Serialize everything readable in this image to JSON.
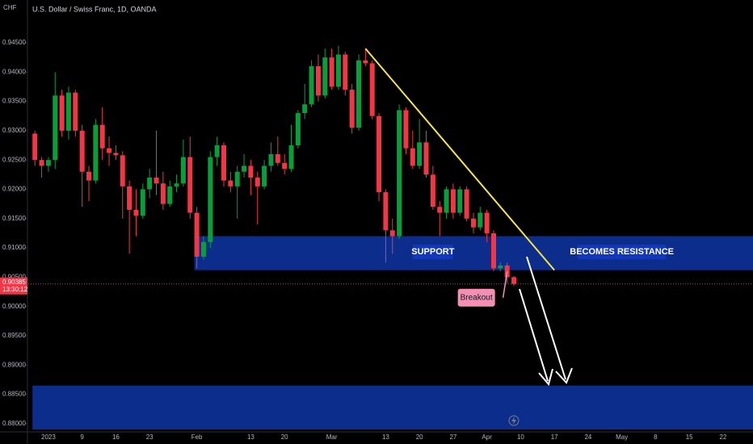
{
  "chart_data": {
    "type": "candlestick",
    "title": "U.S. Dollar / Swiss Franc, 1D, OANDA",
    "currency": "CHF",
    "categories": [
      null,
      null,
      "2023",
      null,
      null,
      null,
      null,
      "9",
      null,
      null,
      null,
      null,
      "16",
      null,
      null,
      null,
      null,
      "23",
      null,
      null,
      null,
      null,
      null,
      null,
      "Feb",
      null,
      null,
      null,
      null,
      null,
      null,
      null,
      "13",
      null,
      null,
      null,
      null,
      "20",
      null,
      null,
      null,
      null,
      null,
      null,
      "Mar",
      null,
      null,
      null,
      null,
      null,
      null,
      null,
      "13",
      null,
      null,
      null,
      null,
      "20",
      null,
      null,
      null,
      null,
      "27",
      null,
      null,
      null,
      null,
      "Apr",
      null,
      null,
      null,
      null,
      "10",
      null,
      null,
      null,
      null,
      "17",
      null,
      null,
      null,
      null,
      "24",
      null,
      null,
      null,
      null,
      "May",
      null,
      null,
      null,
      null,
      "8",
      null,
      null,
      null,
      null,
      "15",
      null,
      null,
      null,
      null,
      "22",
      null,
      null,
      null,
      null
    ],
    "open": [
      0.9295,
      0.925,
      0.924,
      0.925,
      0.936,
      0.93,
      0.9365,
      0.93,
      0.923,
      0.9215,
      0.931,
      0.927,
      0.9262,
      0.9258,
      0.9205,
      0.9165,
      0.9155,
      0.92,
      0.922,
      0.921,
      0.9175,
      0.9205,
      0.921,
      0.9255,
      0.916,
      0.9085,
      0.911,
      0.9255,
      0.9275,
      0.9215,
      0.9205,
      0.923,
      0.924,
      0.922,
      0.9205,
      0.924,
      0.926,
      0.9245,
      0.9235,
      0.9275,
      0.933,
      0.9345,
      0.941,
      0.936,
      0.9425,
      0.9375,
      0.943,
      0.937,
      0.9305,
      0.942,
      0.9415,
      0.9325,
      0.9195,
      0.913,
      0.912,
      0.9335,
      0.927,
      0.924,
      0.928,
      0.9225,
      0.917,
      0.916,
      0.92,
      0.916,
      0.92,
      0.915,
      0.9135,
      0.916,
      0.9125,
      0.9065,
      0.907,
      0.905,
      null,
      null,
      null,
      null,
      null,
      null,
      null,
      null,
      null,
      null,
      null,
      null,
      null,
      null,
      null,
      null,
      null,
      null,
      null,
      null,
      null,
      null,
      null,
      null,
      null,
      null,
      null,
      null,
      null,
      null,
      null,
      null,
      null,
      null,
      null
    ],
    "high": [
      0.93,
      0.9255,
      0.9255,
      0.94,
      0.937,
      0.9375,
      0.937,
      0.931,
      0.924,
      0.932,
      0.934,
      0.929,
      0.9275,
      0.9265,
      0.9215,
      0.92,
      0.921,
      0.9235,
      0.93,
      0.923,
      0.9215,
      0.9225,
      0.9285,
      0.929,
      0.917,
      0.912,
      0.9265,
      0.929,
      0.928,
      0.923,
      0.924,
      0.926,
      0.925,
      0.923,
      0.925,
      0.928,
      0.929,
      0.926,
      0.931,
      0.9335,
      0.938,
      0.942,
      0.943,
      0.944,
      0.944,
      0.9445,
      0.9435,
      0.938,
      0.943,
      0.944,
      0.942,
      0.933,
      0.92,
      0.915,
      0.9345,
      0.934,
      0.93,
      0.932,
      0.93,
      0.924,
      0.918,
      0.9205,
      0.921,
      0.9205,
      0.9205,
      0.916,
      0.917,
      0.9165,
      0.913,
      0.9075,
      0.9075,
      0.9052,
      null,
      null,
      null,
      null,
      null,
      null,
      null,
      null,
      null,
      null,
      null,
      null,
      null,
      null,
      null,
      null,
      null,
      null,
      null,
      null,
      null,
      null,
      null,
      null,
      null,
      null,
      null,
      null,
      null,
      null,
      null,
      null,
      null,
      null,
      null
    ],
    "low": [
      0.924,
      0.922,
      0.923,
      0.9235,
      0.929,
      0.9285,
      0.929,
      0.917,
      0.918,
      0.921,
      0.925,
      0.924,
      0.925,
      0.915,
      0.909,
      0.912,
      0.915,
      0.9185,
      0.919,
      0.9165,
      0.917,
      0.9195,
      0.9205,
      0.915,
      0.9065,
      0.908,
      0.91,
      0.924,
      0.9205,
      0.9195,
      0.915,
      0.922,
      0.919,
      0.914,
      0.92,
      0.923,
      0.924,
      0.9225,
      0.923,
      0.927,
      0.932,
      0.934,
      0.935,
      0.9355,
      0.937,
      0.937,
      0.936,
      0.9295,
      0.93,
      0.941,
      0.932,
      0.918,
      0.9075,
      0.909,
      0.9115,
      0.926,
      0.9235,
      0.9235,
      0.922,
      0.9165,
      0.912,
      0.915,
      0.915,
      0.9155,
      0.9145,
      0.9125,
      0.913,
      0.911,
      0.906,
      0.906,
      0.904,
      0.9035,
      null,
      null,
      null,
      null,
      null,
      null,
      null,
      null,
      null,
      null,
      null,
      null,
      null,
      null,
      null,
      null,
      null,
      null,
      null,
      null,
      null,
      null,
      null,
      null,
      null,
      null,
      null,
      null,
      null,
      null,
      null,
      null,
      null,
      null,
      null
    ],
    "close": [
      0.925,
      0.924,
      0.925,
      0.936,
      0.93,
      0.9365,
      0.93,
      0.923,
      0.9215,
      0.931,
      0.927,
      0.9262,
      0.9258,
      0.9205,
      0.9165,
      0.9155,
      0.92,
      0.922,
      0.921,
      0.9175,
      0.9205,
      0.921,
      0.9255,
      0.916,
      0.9085,
      0.911,
      0.9255,
      0.9275,
      0.9215,
      0.9205,
      0.923,
      0.924,
      0.922,
      0.9205,
      0.924,
      0.926,
      0.9245,
      0.9235,
      0.9275,
      0.933,
      0.9345,
      0.941,
      0.936,
      0.9425,
      0.9375,
      0.943,
      0.937,
      0.9305,
      0.942,
      0.9415,
      0.9325,
      0.9195,
      0.913,
      0.912,
      0.9335,
      0.927,
      0.924,
      0.928,
      0.9225,
      0.917,
      0.916,
      0.92,
      0.916,
      0.92,
      0.915,
      0.9135,
      0.916,
      0.9125,
      0.9065,
      0.907,
      0.905,
      0.90385,
      null,
      null,
      null,
      null,
      null,
      null,
      null,
      null,
      null,
      null,
      null,
      null,
      null,
      null,
      null,
      null,
      null,
      null,
      null,
      null,
      null,
      null,
      null,
      null,
      null,
      null,
      null,
      null,
      null,
      null,
      null,
      null,
      null,
      null,
      null
    ],
    "up_color": "#089e3a",
    "down_color": "#f23645",
    "ylim": [
      0.8786,
      0.9523
    ],
    "yticks": [
      {
        "value": 0.945,
        "label": "0.94500"
      },
      {
        "value": 0.94,
        "label": "0.94000"
      },
      {
        "value": 0.935,
        "label": "0.93500"
      },
      {
        "value": 0.93,
        "label": "0.93000"
      },
      {
        "value": 0.925,
        "label": "0.92500"
      },
      {
        "value": 0.92,
        "label": "0.92000"
      },
      {
        "value": 0.915,
        "label": "0.91500"
      },
      {
        "value": 0.91,
        "label": "0.91000"
      },
      {
        "value": 0.905,
        "label": "0.90500"
      },
      {
        "value": 0.9,
        "label": "0.90000"
      },
      {
        "value": 0.895,
        "label": "0.89500"
      },
      {
        "value": 0.89,
        "label": "0.89000"
      },
      {
        "value": 0.885,
        "label": "0.88500"
      },
      {
        "value": 0.88,
        "label": "0.88000"
      }
    ],
    "last_price": {
      "value": 0.90385,
      "label": "0.90385"
    },
    "countdown": "13:30:12",
    "zones": [
      {
        "from_index": 24,
        "high": 0.912,
        "low": 0.9062,
        "color": "#0c2d8c"
      },
      {
        "from_index": 0,
        "high": 0.8865,
        "low": 0.879,
        "color": "#0c2d8c"
      }
    ],
    "trendline": {
      "start": {
        "index": 49,
        "price": 0.944
      },
      "end": {
        "index": 77,
        "price": 0.9062
      },
      "color": "#f5e642"
    },
    "annotations": [
      {
        "text": "SUPPORT",
        "index": 59,
        "price": 0.9093
      },
      {
        "text": "BECOMES RESISTANCE",
        "index": 87,
        "price": 0.9093
      },
      {
        "text": "Breakout",
        "index": 67,
        "price": 0.9015
      }
    ]
  }
}
